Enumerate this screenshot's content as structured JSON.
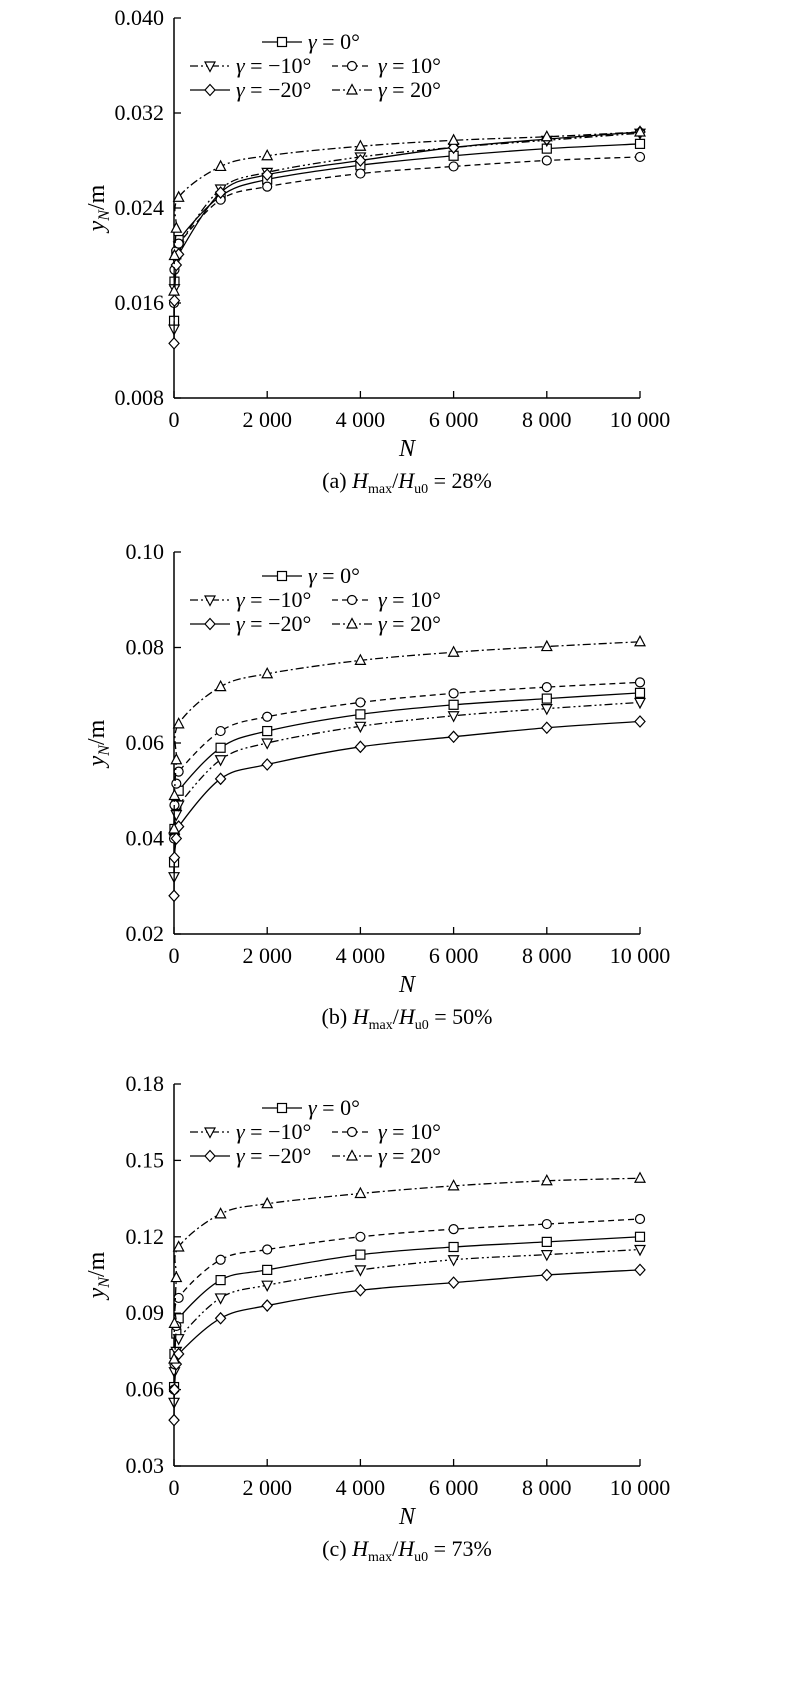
{
  "chart_data": [
    {
      "type": "line",
      "caption": "(a) Hmax/Hu0 = 28%",
      "caption_parts": {
        "prefix": "(a) ",
        "var1": "H",
        "sub1": "max",
        "sep": "/",
        "var2": "H",
        "sub2": "u0",
        "suffix": " = 28%"
      },
      "xlabel": "N",
      "ylabel": "yN/m",
      "ylabel_parts": {
        "var": "y",
        "sub": "N",
        "unit": "/m"
      },
      "xlim": [
        0,
        10000
      ],
      "ylim": [
        0.008,
        0.04
      ],
      "xticks": [
        0,
        2000,
        4000,
        6000,
        8000,
        10000
      ],
      "xtick_labels": [
        "0",
        "2 000",
        "4 000",
        "6 000",
        "8 000",
        "10 000"
      ],
      "yticks": [
        0.008,
        0.016,
        0.024,
        0.032,
        0.04
      ],
      "ytick_labels": [
        "0.008",
        "0.016",
        "0.024",
        "0.032",
        "0.040"
      ],
      "x": [
        1,
        10,
        50,
        100,
        1000,
        2000,
        4000,
        6000,
        8000,
        10000
      ],
      "series": [
        {
          "name": "γ = 0°",
          "marker": "square",
          "dash": "solid",
          "values": [
            0.0145,
            0.0178,
            0.0201,
            0.0213,
            0.025,
            0.0264,
            0.0276,
            0.0284,
            0.029,
            0.0294
          ]
        },
        {
          "name": "γ = −10°",
          "marker": "triangle-down",
          "dash": "dashdotdot",
          "values": [
            0.0138,
            0.0172,
            0.0196,
            0.0208,
            0.0256,
            0.027,
            0.0283,
            0.0291,
            0.0297,
            0.0303
          ]
        },
        {
          "name": "γ = 10°",
          "marker": "circle",
          "dash": "dashed",
          "values": [
            0.016,
            0.0188,
            0.0204,
            0.021,
            0.0247,
            0.0258,
            0.0269,
            0.0275,
            0.028,
            0.0283
          ]
        },
        {
          "name": "γ = −20°",
          "marker": "diamond",
          "dash": "solid",
          "values": [
            0.0126,
            0.0162,
            0.0192,
            0.0201,
            0.0253,
            0.0268,
            0.028,
            0.0291,
            0.0298,
            0.0304
          ]
        },
        {
          "name": "γ = 20°",
          "marker": "triangle-up",
          "dash": "dashdot",
          "values": [
            0.017,
            0.02,
            0.0223,
            0.0249,
            0.0275,
            0.0284,
            0.0292,
            0.0297,
            0.03,
            0.0304
          ]
        }
      ]
    },
    {
      "type": "line",
      "caption": "(b) Hmax/Hu0 = 50%",
      "caption_parts": {
        "prefix": "(b) ",
        "var1": "H",
        "sub1": "max",
        "sep": "/",
        "var2": "H",
        "sub2": "u0",
        "suffix": " = 50%"
      },
      "xlabel": "N",
      "ylabel": "yN/m",
      "ylabel_parts": {
        "var": "y",
        "sub": "N",
        "unit": "/m"
      },
      "xlim": [
        0,
        10000
      ],
      "ylim": [
        0.02,
        0.1
      ],
      "xticks": [
        0,
        2000,
        4000,
        6000,
        8000,
        10000
      ],
      "xtick_labels": [
        "0",
        "2 000",
        "4 000",
        "6 000",
        "8 000",
        "10 000"
      ],
      "yticks": [
        0.02,
        0.04,
        0.06,
        0.08,
        0.1
      ],
      "ytick_labels": [
        "0.02",
        "0.04",
        "0.06",
        "0.08",
        "0.10"
      ],
      "x": [
        1,
        10,
        50,
        100,
        1000,
        2000,
        4000,
        6000,
        8000,
        10000
      ],
      "series": [
        {
          "name": "γ = 0°",
          "marker": "square",
          "dash": "solid",
          "values": [
            0.035,
            0.042,
            0.047,
            0.05,
            0.059,
            0.0625,
            0.066,
            0.068,
            0.0693,
            0.0705
          ]
        },
        {
          "name": "γ = −10°",
          "marker": "triangle-down",
          "dash": "dashdotdot",
          "values": [
            0.032,
            0.04,
            0.045,
            0.047,
            0.0565,
            0.06,
            0.0635,
            0.0657,
            0.0672,
            0.0685
          ]
        },
        {
          "name": "γ = 10°",
          "marker": "circle",
          "dash": "dashed",
          "values": [
            0.04,
            0.047,
            0.0515,
            0.054,
            0.0625,
            0.0655,
            0.0685,
            0.0704,
            0.0717,
            0.0727
          ]
        },
        {
          "name": "γ = −20°",
          "marker": "diamond",
          "dash": "solid",
          "values": [
            0.028,
            0.036,
            0.04,
            0.0425,
            0.0525,
            0.0555,
            0.0592,
            0.0613,
            0.0632,
            0.0645
          ]
        },
        {
          "name": "γ = 20°",
          "marker": "triangle-up",
          "dash": "dashdot",
          "values": [
            0.042,
            0.049,
            0.0565,
            0.064,
            0.0718,
            0.0745,
            0.0773,
            0.079,
            0.0802,
            0.0812
          ]
        }
      ]
    },
    {
      "type": "line",
      "caption": "(c) Hmax/Hu0 = 73%",
      "caption_parts": {
        "prefix": "(c) ",
        "var1": "H",
        "sub1": "max",
        "sep": "/",
        "var2": "H",
        "sub2": "u0",
        "suffix": " = 73%"
      },
      "xlabel": "N",
      "ylabel": "yN/m",
      "ylabel_parts": {
        "var": "y",
        "sub": "N",
        "unit": "/m"
      },
      "xlim": [
        0,
        10000
      ],
      "ylim": [
        0.03,
        0.18
      ],
      "xticks": [
        0,
        2000,
        4000,
        6000,
        8000,
        10000
      ],
      "xtick_labels": [
        "0",
        "2 000",
        "4 000",
        "6 000",
        "8 000",
        "10 000"
      ],
      "yticks": [
        0.03,
        0.06,
        0.09,
        0.12,
        0.15,
        0.18
      ],
      "ytick_labels": [
        "0.03",
        "0.06",
        "0.09",
        "0.12",
        "0.15",
        "0.18"
      ],
      "x": [
        1,
        10,
        50,
        100,
        1000,
        2000,
        4000,
        6000,
        8000,
        10000
      ],
      "series": [
        {
          "name": "γ = 0°",
          "marker": "square",
          "dash": "solid",
          "values": [
            0.061,
            0.074,
            0.082,
            0.088,
            0.103,
            0.107,
            0.113,
            0.116,
            0.118,
            0.12
          ]
        },
        {
          "name": "γ = −10°",
          "marker": "triangle-down",
          "dash": "dashdotdot",
          "values": [
            0.055,
            0.067,
            0.075,
            0.08,
            0.096,
            0.101,
            0.107,
            0.111,
            0.113,
            0.115
          ]
        },
        {
          "name": "γ = 10°",
          "marker": "circle",
          "dash": "dashed",
          "values": [
            0.06,
            0.07,
            0.085,
            0.096,
            0.111,
            0.115,
            0.12,
            0.123,
            0.125,
            0.127
          ]
        },
        {
          "name": "γ = −20°",
          "marker": "diamond",
          "dash": "solid",
          "values": [
            0.048,
            0.06,
            0.07,
            0.074,
            0.088,
            0.093,
            0.099,
            0.102,
            0.105,
            0.107
          ]
        },
        {
          "name": "γ = 20°",
          "marker": "triangle-up",
          "dash": "dashdot",
          "values": [
            0.072,
            0.086,
            0.104,
            0.116,
            0.129,
            0.133,
            0.137,
            0.14,
            0.142,
            0.143
          ]
        }
      ]
    }
  ]
}
